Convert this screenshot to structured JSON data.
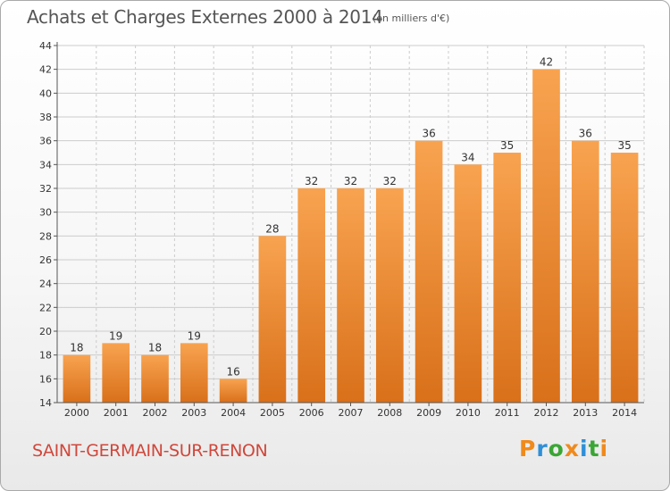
{
  "header": {
    "title": "Achats et Charges Externes 2000 à 2014",
    "unit": "(en milliers d'€)"
  },
  "footer": {
    "commune": "SAINT-GERMAIN-SUR-RENON",
    "logo": "Proxiti"
  },
  "colors": {
    "bar_top": "#f8a350",
    "bar_bottom": "#d9701a",
    "grid": "#cccccc",
    "commune_text": "#d0473b",
    "logo_letters": [
      "#f08a1c",
      "#2f8fd8",
      "#3aa635",
      "#f08a1c",
      "#2f8fd8",
      "#3aa635",
      "#f08a1c"
    ]
  },
  "chart_data": {
    "type": "bar",
    "categories": [
      "2000",
      "2001",
      "2002",
      "2003",
      "2004",
      "2005",
      "2006",
      "2007",
      "2008",
      "2009",
      "2010",
      "2011",
      "2012",
      "2013",
      "2014"
    ],
    "values": [
      18,
      19,
      18,
      19,
      16,
      28,
      32,
      32,
      32,
      36,
      34,
      35,
      42,
      36,
      35
    ],
    "ylim": [
      14,
      44
    ],
    "yticks": [
      14,
      16,
      18,
      20,
      22,
      24,
      26,
      28,
      30,
      32,
      34,
      36,
      38,
      40,
      42,
      44
    ],
    "grid": true,
    "legend": "none"
  }
}
